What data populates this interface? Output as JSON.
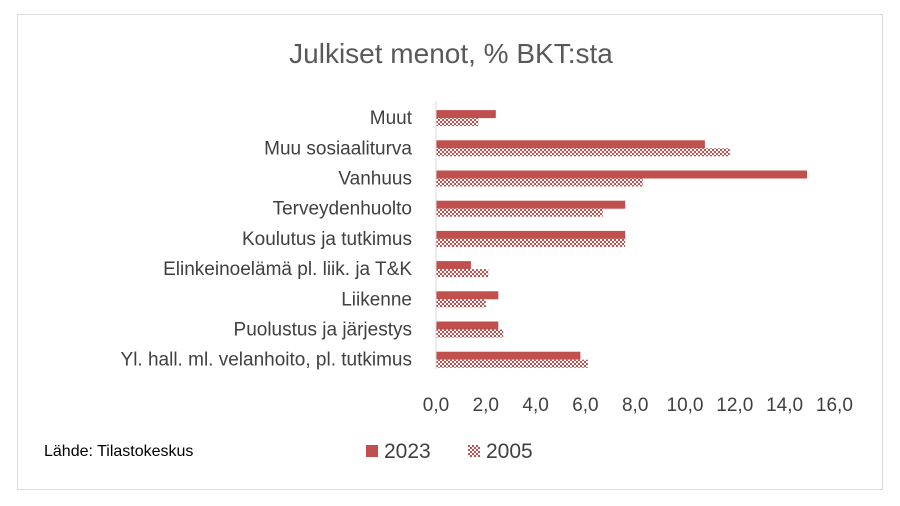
{
  "source": "Lähde: Tilastokeskus",
  "colors": {
    "series_2023": "#c0504d",
    "series_2005": "#c0504d"
  },
  "chart_data": {
    "type": "bar",
    "orientation": "horizontal",
    "title": "Julkiset menot, % BKT:sta",
    "categories": [
      "Muut",
      "Muu sosiaaliturva",
      "Vanhuus",
      "Terveydenhuolto",
      "Koulutus ja tutkimus",
      "Elinkeinoelämä pl. liik. ja T&K",
      "Liikenne",
      "Puolustus ja järjestys",
      "Yl. hall. ml. velanhoito, pl. tutkimus"
    ],
    "series": [
      {
        "name": "2023",
        "pattern": "solid",
        "values": [
          2.4,
          10.8,
          14.9,
          7.6,
          7.6,
          1.4,
          2.5,
          2.5,
          5.8
        ]
      },
      {
        "name": "2005",
        "pattern": "checker",
        "values": [
          1.7,
          11.8,
          8.3,
          6.7,
          7.6,
          2.1,
          2.0,
          2.7,
          6.1
        ]
      }
    ],
    "xlim": [
      0,
      16
    ],
    "xticks": [
      "0,0",
      "2,0",
      "4,0",
      "6,0",
      "8,0",
      "10,0",
      "12,0",
      "14,0",
      "16,0"
    ],
    "grid": false,
    "legend": "bottom"
  }
}
